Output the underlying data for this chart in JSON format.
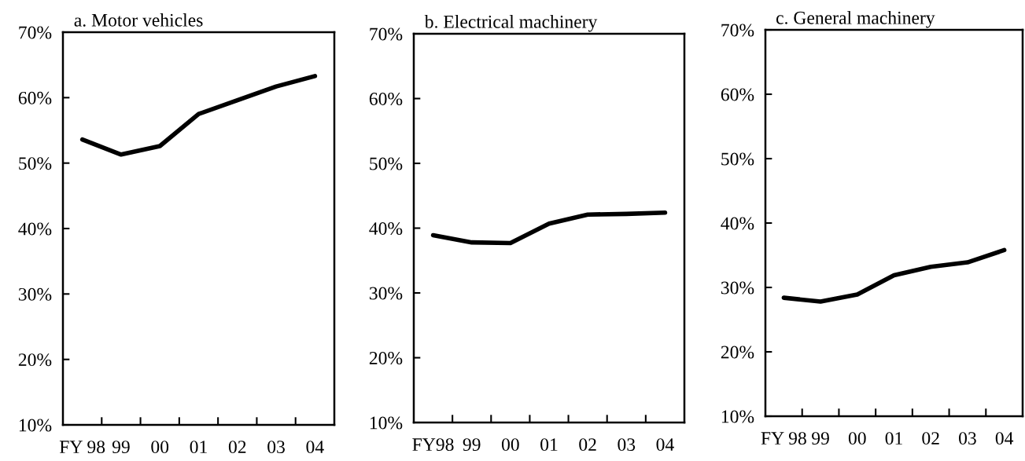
{
  "chart_data": [
    {
      "type": "line",
      "title": "a. Motor vehicles",
      "categories": [
        "FY 98",
        "99",
        "00",
        "01",
        "02",
        "03",
        "04"
      ],
      "series": [
        {
          "color": "#000000",
          "values": [
            53.6,
            51.3,
            52.6,
            57.5,
            59.6,
            61.7,
            63.3
          ]
        }
      ],
      "ylim": [
        10,
        70
      ],
      "yticks": [
        {
          "value": 10,
          "label": "10%"
        },
        {
          "value": 20,
          "label": "20%"
        },
        {
          "value": 30,
          "label": "30%"
        },
        {
          "value": 40,
          "label": "40%"
        },
        {
          "value": 50,
          "label": "50%"
        },
        {
          "value": 60,
          "label": "60%"
        },
        {
          "value": 70,
          "label": "70%"
        }
      ]
    },
    {
      "type": "line",
      "title": "b. Electrical machinery",
      "categories": [
        "FY98",
        "99",
        "00",
        "01",
        "02",
        "03",
        "04"
      ],
      "series": [
        {
          "color": "#000000",
          "values": [
            38.9,
            37.8,
            37.7,
            40.7,
            42.1,
            42.2,
            42.4
          ]
        }
      ],
      "ylim": [
        10,
        70
      ],
      "yticks": [
        {
          "value": 10,
          "label": "10%"
        },
        {
          "value": 20,
          "label": "20%"
        },
        {
          "value": 30,
          "label": "30%"
        },
        {
          "value": 40,
          "label": "40%"
        },
        {
          "value": 50,
          "label": "50%"
        },
        {
          "value": 60,
          "label": "60%"
        },
        {
          "value": 70,
          "label": "70%"
        }
      ]
    },
    {
      "type": "line",
      "title": "c. General machinery",
      "categories": [
        "FY 98",
        "99",
        "00",
        "01",
        "02",
        "03",
        "04"
      ],
      "series": [
        {
          "color": "#000000",
          "values": [
            28.4,
            27.8,
            28.9,
            31.9,
            33.2,
            33.9,
            35.8
          ]
        }
      ],
      "ylim": [
        10,
        70
      ],
      "yticks": [
        {
          "value": 10,
          "label": "10%"
        },
        {
          "value": 20,
          "label": "20%"
        },
        {
          "value": 30,
          "label": "30%"
        },
        {
          "value": 40,
          "label": "40%"
        },
        {
          "value": 50,
          "label": "50%"
        },
        {
          "value": 60,
          "label": "60%"
        },
        {
          "value": 70,
          "label": "70%"
        }
      ]
    }
  ]
}
